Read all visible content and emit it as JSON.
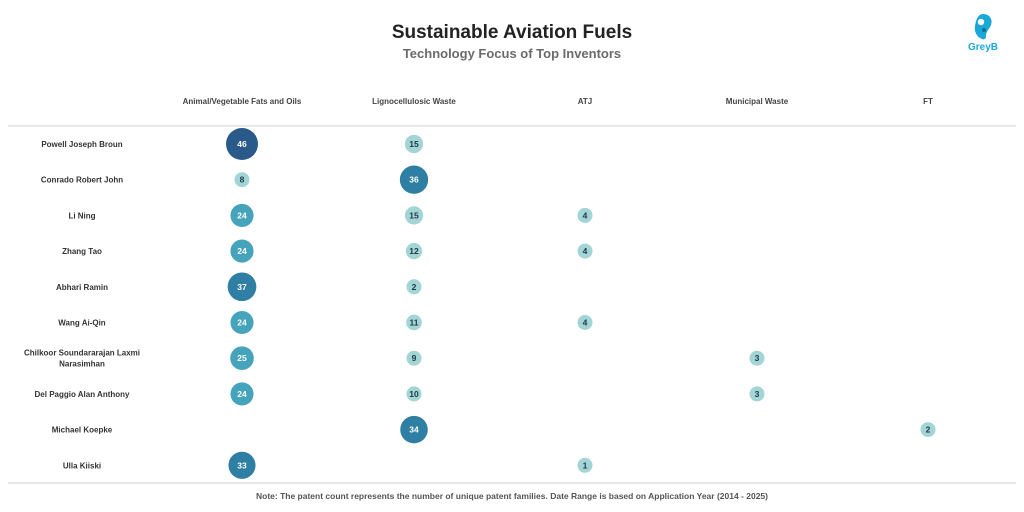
{
  "title": "Sustainable Aviation Fuels",
  "subtitle": "Technology Focus of Top Inventors",
  "logo": {
    "text": "GreyB",
    "icon": "greyb-logo-icon",
    "color": "#1aa8d8"
  },
  "footnote": "Note: The patent count represents the number of unique patent families. Date Range is based on Application Year (2014 - 2025)",
  "colors": {
    "light": "#a3d4d6",
    "mid": "#45a3bb",
    "dark": "#2f7ea3",
    "darkest": "#2a5a8a"
  },
  "chart_data": {
    "type": "bubble-matrix",
    "title": "Sustainable Aviation Fuels",
    "subtitle": "Technology Focus of Top Inventors",
    "columns": [
      "Animal/Vegetable Fats and Oils",
      "Lignocellulosic Waste",
      "ATJ",
      "Municipal Waste",
      "FT"
    ],
    "rows": [
      {
        "inventor": [
          "Powell Joseph Broun"
        ],
        "values": [
          46,
          15,
          null,
          null,
          null
        ]
      },
      {
        "inventor": [
          "Conrado Robert John"
        ],
        "values": [
          8,
          36,
          null,
          null,
          null
        ]
      },
      {
        "inventor": [
          "Li Ning"
        ],
        "values": [
          24,
          15,
          4,
          null,
          null
        ]
      },
      {
        "inventor": [
          "Zhang Tao"
        ],
        "values": [
          24,
          12,
          4,
          null,
          null
        ]
      },
      {
        "inventor": [
          "Abhari Ramin"
        ],
        "values": [
          37,
          2,
          null,
          null,
          null
        ]
      },
      {
        "inventor": [
          "Wang Ai-Qin"
        ],
        "values": [
          24,
          11,
          4,
          null,
          null
        ]
      },
      {
        "inventor": [
          "Chilkoor Soundararajan Laxmi",
          "Narasimhan"
        ],
        "values": [
          25,
          9,
          null,
          3,
          null
        ]
      },
      {
        "inventor": [
          "Del Paggio Alan Anthony"
        ],
        "values": [
          24,
          10,
          null,
          3,
          null
        ]
      },
      {
        "inventor": [
          "Michael Koepke"
        ],
        "values": [
          null,
          34,
          null,
          null,
          2
        ]
      },
      {
        "inventor": [
          "Ulla Kiiski"
        ],
        "values": [
          33,
          null,
          1,
          null,
          null
        ]
      }
    ]
  }
}
